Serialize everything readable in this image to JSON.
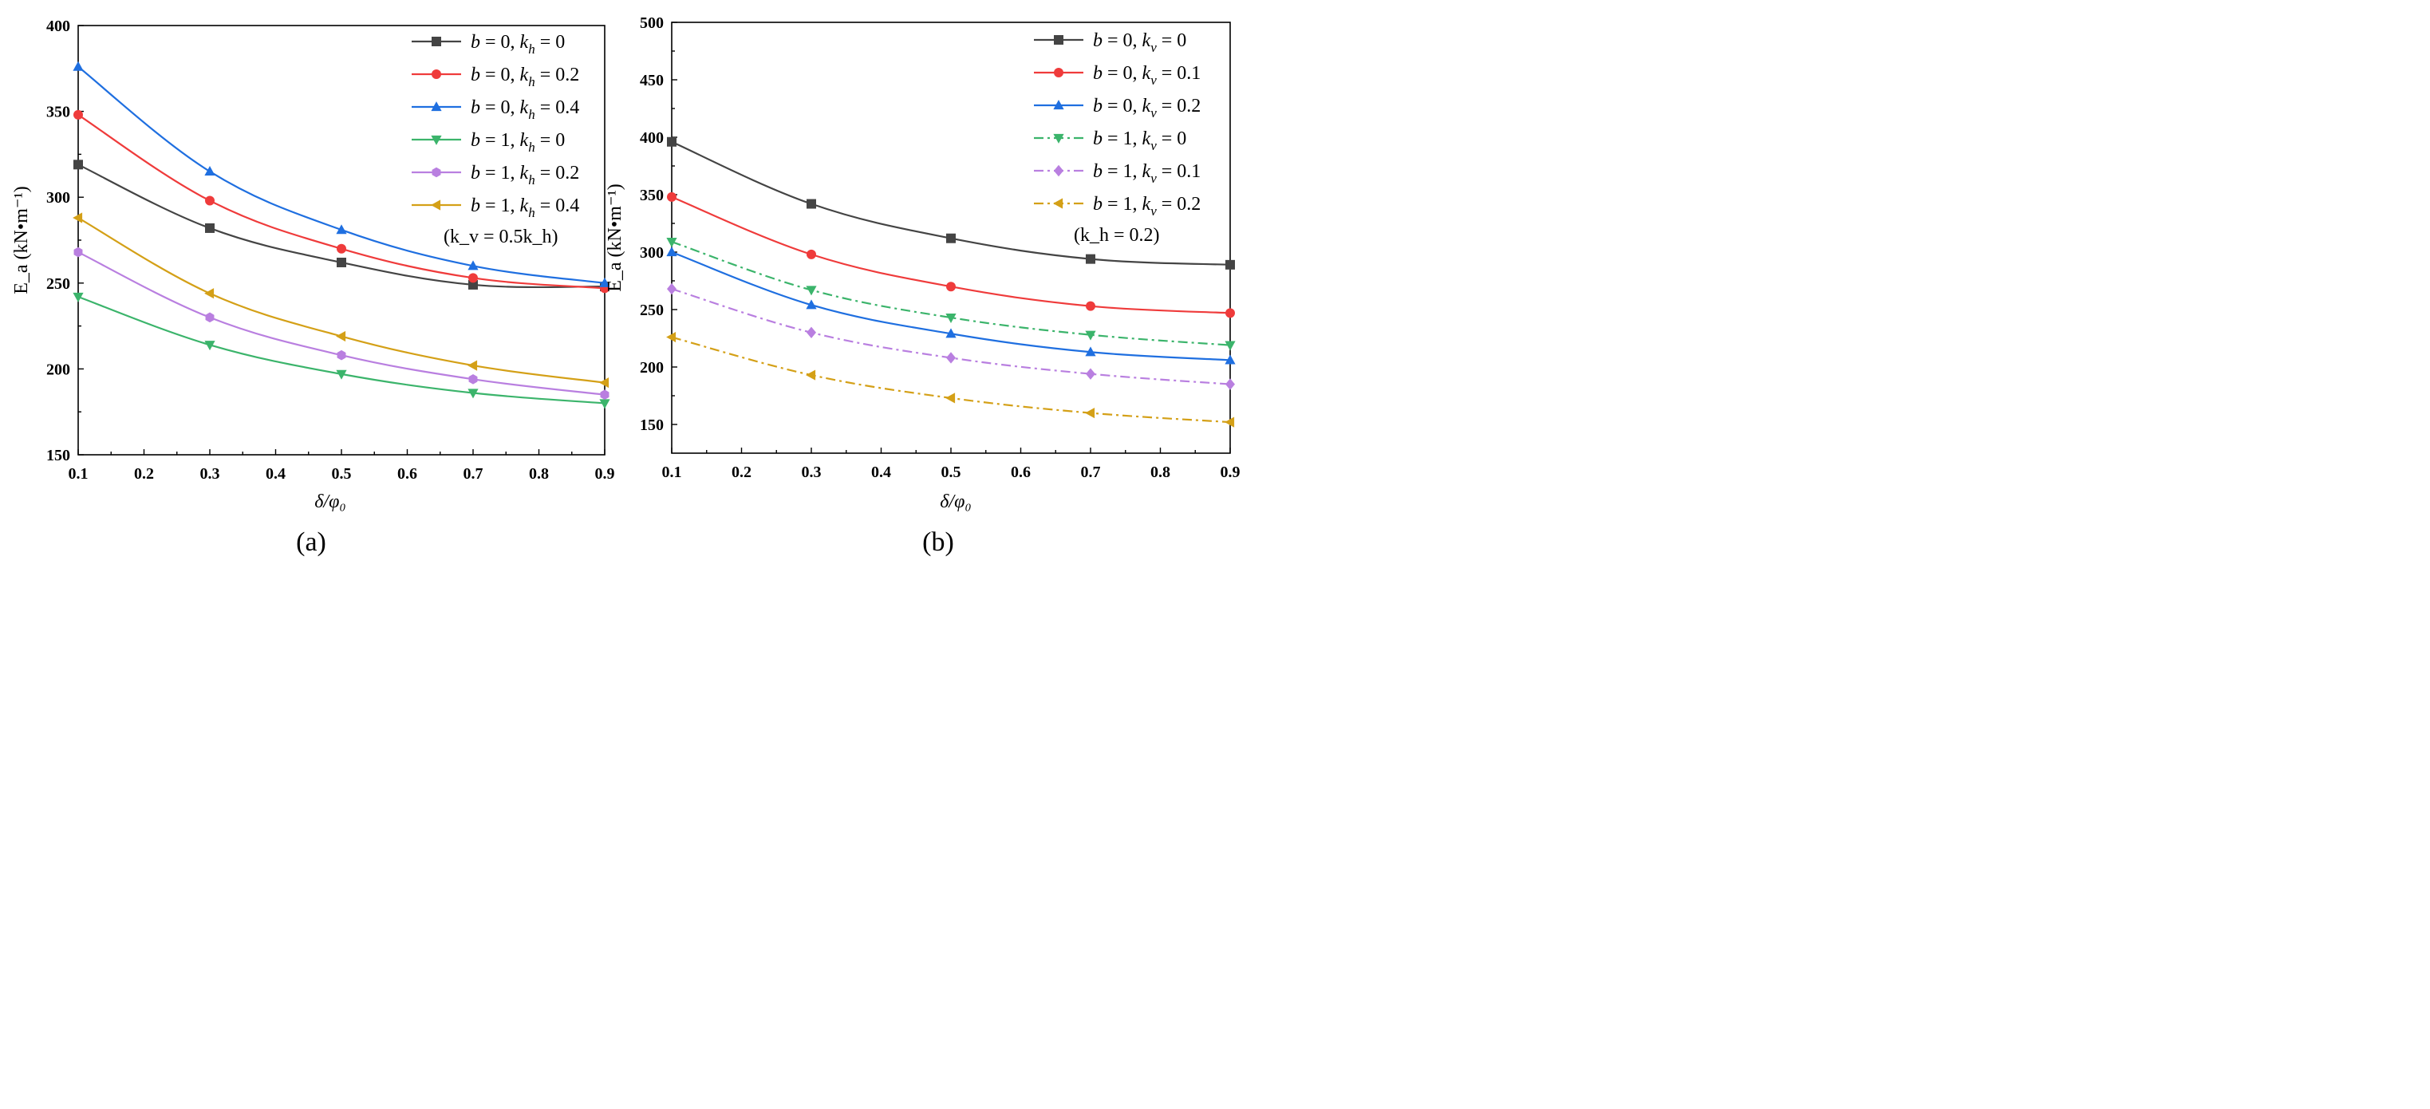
{
  "chart_data": [
    {
      "type": "line",
      "panel_label": "(a)",
      "xlabel": "δ/φ₀",
      "ylabel": "E_a (kN•m⁻¹)",
      "xlim": [
        0.1,
        0.9
      ],
      "ylim": [
        150,
        400
      ],
      "xticks": [
        0.1,
        0.2,
        0.3,
        0.4,
        0.5,
        0.6,
        0.7,
        0.8,
        0.9
      ],
      "yticks": [
        150,
        200,
        250,
        300,
        350,
        400
      ],
      "x": [
        0.1,
        0.3,
        0.5,
        0.7,
        0.9
      ],
      "legend_note": "(k_v = 0.5k_h)",
      "series": [
        {
          "name": "b = 0, k_h = 0",
          "label_parts": [
            "b",
            " = 0, ",
            "k",
            "h",
            " = 0"
          ],
          "color": "#444444",
          "marker": "square",
          "dash": "solid",
          "values": [
            319,
            282,
            262,
            249,
            248
          ]
        },
        {
          "name": "b = 0, k_h = 0.2",
          "label_parts": [
            "b",
            " = 0, ",
            "k",
            "h",
            " = 0.2"
          ],
          "color": "#ef3b3b",
          "marker": "circle",
          "dash": "solid",
          "values": [
            348,
            298,
            270,
            253,
            247
          ]
        },
        {
          "name": "b = 0, k_h = 0.4",
          "label_parts": [
            "b",
            " = 0, ",
            "k",
            "h",
            " = 0.4"
          ],
          "color": "#1f6fe0",
          "marker": "triangle",
          "dash": "solid",
          "values": [
            376,
            315,
            281,
            260,
            250
          ]
        },
        {
          "name": "b = 1, k_h = 0",
          "label_parts": [
            "b",
            " = 1, ",
            "k",
            "h",
            " = 0"
          ],
          "color": "#3bb46b",
          "marker": "triangle-down",
          "dash": "solid",
          "values": [
            242,
            214,
            197,
            186,
            180
          ]
        },
        {
          "name": "b = 1, k_h = 0.2",
          "label_parts": [
            "b",
            " = 1, ",
            "k",
            "h",
            " = 0.2"
          ],
          "color": "#b97fe0",
          "marker": "hexagon",
          "dash": "solid",
          "values": [
            268,
            230,
            208,
            194,
            185
          ]
        },
        {
          "name": "b = 1, k_h = 0.4",
          "label_parts": [
            "b",
            " = 1, ",
            "k",
            "h",
            " = 0.4"
          ],
          "color": "#d4a017",
          "marker": "triangle-left",
          "dash": "solid",
          "values": [
            288,
            244,
            219,
            202,
            192
          ]
        }
      ]
    },
    {
      "type": "line",
      "panel_label": "(b)",
      "xlabel": "δ/φ₀",
      "ylabel": "E_a (kN•m⁻¹)",
      "xlim": [
        0.1,
        0.9
      ],
      "ylim": [
        125,
        500
      ],
      "xticks": [
        0.1,
        0.2,
        0.3,
        0.4,
        0.5,
        0.6,
        0.7,
        0.8,
        0.9
      ],
      "yticks": [
        150,
        200,
        250,
        300,
        350,
        400,
        450,
        500
      ],
      "x": [
        0.1,
        0.3,
        0.5,
        0.7,
        0.9
      ],
      "legend_note": "(k_h = 0.2)",
      "series": [
        {
          "name": "b = 0, k_v = 0",
          "label_parts": [
            "b",
            " = 0, ",
            "k",
            "v",
            " = 0"
          ],
          "color": "#444444",
          "marker": "square",
          "dash": "solid",
          "values": [
            396,
            342,
            312,
            294,
            289
          ]
        },
        {
          "name": "b = 0, k_v = 0.1",
          "label_parts": [
            "b",
            " = 0, ",
            "k",
            "v",
            " = 0.1"
          ],
          "color": "#ef3b3b",
          "marker": "circle",
          "dash": "solid",
          "values": [
            348,
            298,
            270,
            253,
            247
          ]
        },
        {
          "name": "b = 0, k_v = 0.2",
          "label_parts": [
            "b",
            " = 0, ",
            "k",
            "v",
            " = 0.2"
          ],
          "color": "#1f6fe0",
          "marker": "triangle",
          "dash": "solid",
          "values": [
            300,
            254,
            229,
            213,
            206
          ]
        },
        {
          "name": "b = 1, k_v = 0",
          "label_parts": [
            "b",
            " = 1, ",
            "k",
            "v",
            " = 0"
          ],
          "color": "#3bb46b",
          "marker": "triangle-down",
          "dash": "dashdot",
          "values": [
            309,
            267,
            243,
            228,
            219
          ]
        },
        {
          "name": "b = 1, k_v = 0.1",
          "label_parts": [
            "b",
            " = 1, ",
            "k",
            "v",
            " = 0.1"
          ],
          "color": "#b97fe0",
          "marker": "diamond",
          "dash": "dashdot",
          "values": [
            268,
            230,
            208,
            194,
            185
          ]
        },
        {
          "name": "b = 1, k_v = 0.2",
          "label_parts": [
            "b",
            " = 1, ",
            "k",
            "v",
            " = 0.2"
          ],
          "color": "#d4a017",
          "marker": "triangle-left",
          "dash": "dashdot",
          "values": [
            226,
            193,
            173,
            160,
            152
          ]
        }
      ]
    }
  ]
}
